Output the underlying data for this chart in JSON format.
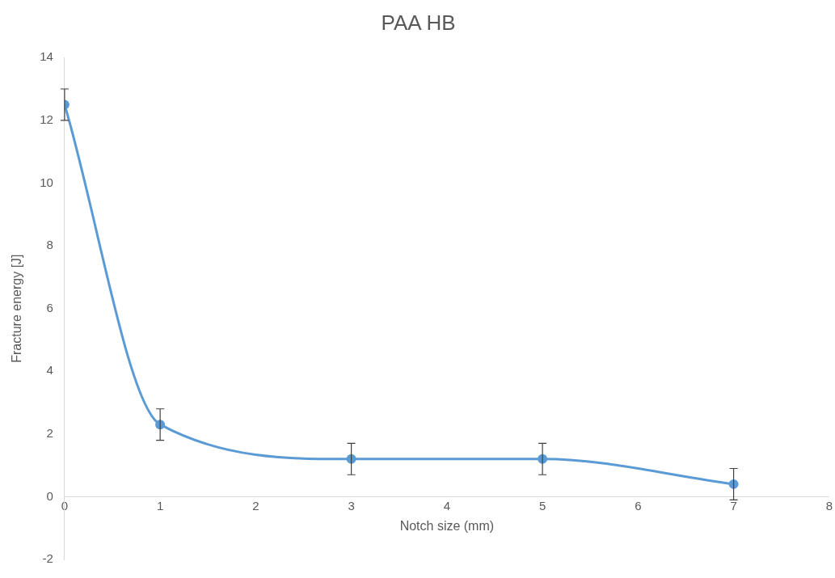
{
  "chart_data": {
    "type": "line",
    "title": "PAA HB",
    "xlabel": "Notch size (mm)",
    "ylabel": "Fracture energy [J]",
    "x": [
      0,
      1,
      3,
      5,
      7
    ],
    "series": [
      {
        "color": "#5b9bd5",
        "values": [
          12.5,
          2.3,
          1.2,
          1.2,
          0.4
        ],
        "errors": [
          0.5,
          0.5,
          0.5,
          0.5,
          0.5
        ]
      }
    ],
    "xlim": [
      0,
      8
    ],
    "xticks": [
      0,
      1,
      2,
      3,
      4,
      5,
      6,
      7,
      8
    ],
    "ylim": [
      -2,
      14
    ],
    "yticks": [
      -2,
      0,
      2,
      4,
      6,
      8,
      10,
      12,
      14
    ],
    "grid": false,
    "marker": "circle",
    "legend": false
  }
}
